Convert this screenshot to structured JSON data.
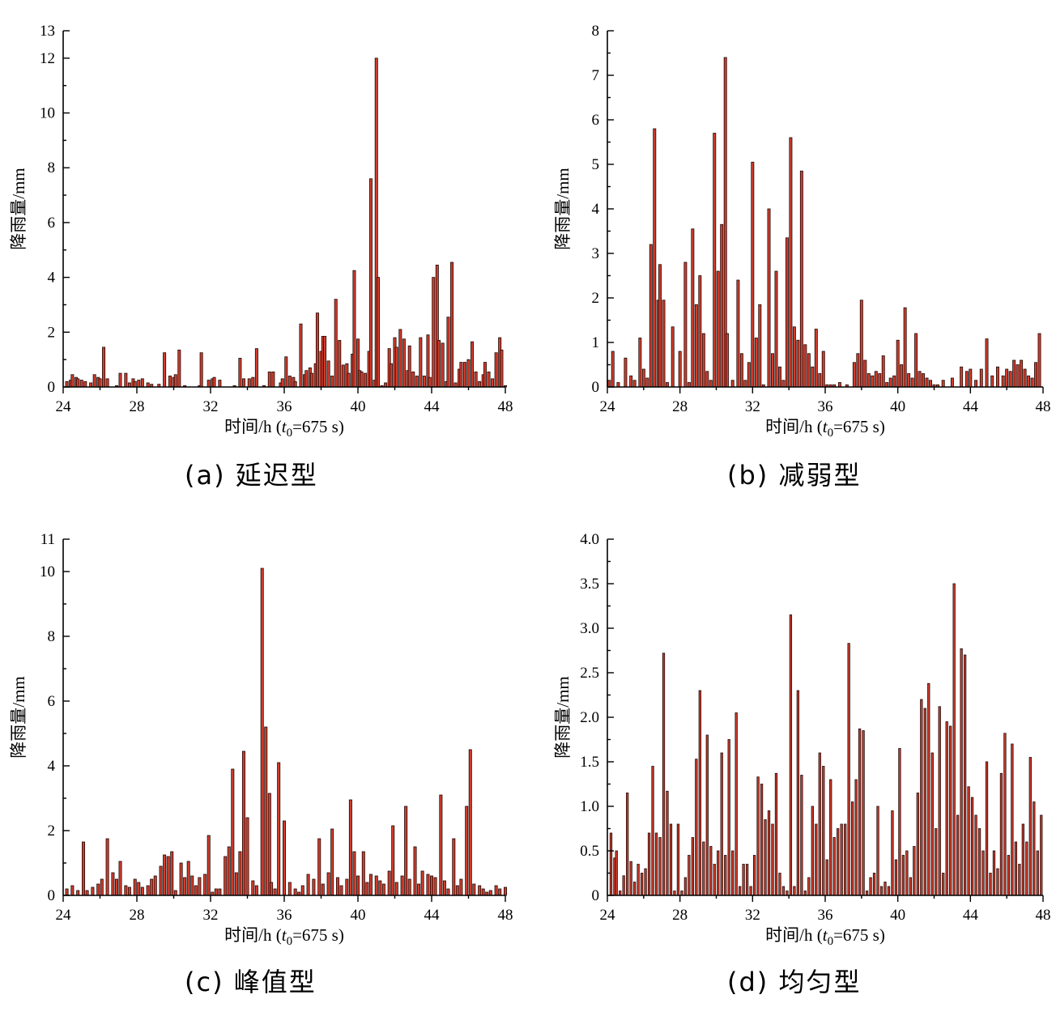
{
  "figure": {
    "xlabel": "时间/h (t0=675 s)",
    "xlabel_parts": {
      "prefix": "时间/h (",
      "var": "t",
      "sub": "0",
      "suffix": "=675 s)"
    },
    "ylabel": "降雨量/mm"
  },
  "colors": {
    "bar_fill": "#d23c2c",
    "bar_stroke": "#1a0a08",
    "axis": "#000000"
  },
  "chart_data": [
    {
      "type": "bar",
      "caption": "(a) 延迟型",
      "xlim": [
        24,
        48
      ],
      "ylim": [
        0,
        13
      ],
      "x_ticks": [
        24,
        28,
        32,
        36,
        40,
        44,
        48
      ],
      "y_ticks": [
        0,
        2,
        4,
        6,
        8,
        10,
        12,
        13
      ],
      "bar_width_h": 0.14,
      "x": [
        24.2,
        24.4,
        24.5,
        24.7,
        24.8,
        25.0,
        25.2,
        25.5,
        25.7,
        25.9,
        26.0,
        26.2,
        26.4,
        26.9,
        27.1,
        27.4,
        27.6,
        27.8,
        27.9,
        28.1,
        28.3,
        28.6,
        28.8,
        29.2,
        29.5,
        29.8,
        30.0,
        30.1,
        30.3,
        30.6,
        31.4,
        31.5,
        31.9,
        32.1,
        32.2,
        32.5,
        33.3,
        33.6,
        33.8,
        34.1,
        34.3,
        34.5,
        34.9,
        35.2,
        35.4,
        35.8,
        35.9,
        36.1,
        36.3,
        36.5,
        36.6,
        36.9,
        37.1,
        37.2,
        37.4,
        37.5,
        37.7,
        37.8,
        38.0,
        38.1,
        38.2,
        38.4,
        38.6,
        38.8,
        39.0,
        39.2,
        39.4,
        39.5,
        39.7,
        39.8,
        40.0,
        40.1,
        40.2,
        40.4,
        40.6,
        40.7,
        40.9,
        41.0,
        41.1,
        41.3,
        41.5,
        41.7,
        41.8,
        42.0,
        42.1,
        42.3,
        42.5,
        42.7,
        42.8,
        43.0,
        43.2,
        43.4,
        43.6,
        43.8,
        43.9,
        44.1,
        44.3,
        44.4,
        44.6,
        44.8,
        44.9,
        45.1,
        45.3,
        45.5,
        45.6,
        45.8,
        46.0,
        46.2,
        46.4,
        46.6,
        46.8,
        46.9,
        47.1,
        47.3,
        47.5,
        47.7,
        47.8,
        48.0
      ],
      "values": [
        0.2,
        0.25,
        0.45,
        0.35,
        0.3,
        0.25,
        0.2,
        0.15,
        0.45,
        0.35,
        0.3,
        1.45,
        0.3,
        0.05,
        0.5,
        0.5,
        0.15,
        0.3,
        0.2,
        0.25,
        0.3,
        0.15,
        0.1,
        0.1,
        1.25,
        0.4,
        0.35,
        0.45,
        1.35,
        0.05,
        0.05,
        1.25,
        0.25,
        0.3,
        0.35,
        0.25,
        0.05,
        1.05,
        0.3,
        0.3,
        0.35,
        1.4,
        0.05,
        0.55,
        0.55,
        0.15,
        0.3,
        1.1,
        0.4,
        0.35,
        0.2,
        2.3,
        0.45,
        0.6,
        0.7,
        0.5,
        0.85,
        2.7,
        1.3,
        1.85,
        1.85,
        0.95,
        0.4,
        3.2,
        1.7,
        0.8,
        0.85,
        0.5,
        1.2,
        4.25,
        1.75,
        0.6,
        0.55,
        0.5,
        1.3,
        7.6,
        0.25,
        12.0,
        4.0,
        0.05,
        0.15,
        1.4,
        0.85,
        1.8,
        1.45,
        2.1,
        1.75,
        0.6,
        1.5,
        0.55,
        0.4,
        1.8,
        0.4,
        1.9,
        0.35,
        4.0,
        4.45,
        1.7,
        1.6,
        0.2,
        2.55,
        4.55,
        0.15,
        0.65,
        0.9,
        0.9,
        1.0,
        1.65,
        0.55,
        0.2,
        0.45,
        0.9,
        0.55,
        0.3,
        1.25,
        1.8,
        1.35,
        0.05
      ]
    },
    {
      "type": "bar",
      "caption": "(b) 减弱型",
      "xlim": [
        24,
        48
      ],
      "ylim": [
        0,
        8
      ],
      "x_ticks": [
        24,
        28,
        32,
        36,
        40,
        44,
        48
      ],
      "y_ticks": [
        0,
        1,
        2,
        3,
        4,
        5,
        6,
        7,
        8
      ],
      "bar_width_h": 0.14,
      "x": [
        24.1,
        24.3,
        24.6,
        25.0,
        25.3,
        25.5,
        25.8,
        26.0,
        26.2,
        26.4,
        26.6,
        26.8,
        26.9,
        27.1,
        27.3,
        27.6,
        28.0,
        28.3,
        28.5,
        28.7,
        28.9,
        29.1,
        29.3,
        29.5,
        29.7,
        29.9,
        30.1,
        30.3,
        30.5,
        30.6,
        30.9,
        31.2,
        31.4,
        31.6,
        31.8,
        32.0,
        32.2,
        32.4,
        32.6,
        32.9,
        33.1,
        33.3,
        33.5,
        33.7,
        33.9,
        34.1,
        34.3,
        34.5,
        34.7,
        34.9,
        35.1,
        35.3,
        35.5,
        35.7,
        35.9,
        36.1,
        36.3,
        36.5,
        36.8,
        37.2,
        37.6,
        37.8,
        38.0,
        38.2,
        38.4,
        38.6,
        38.8,
        39.0,
        39.2,
        39.4,
        39.6,
        39.8,
        40.0,
        40.2,
        40.4,
        40.6,
        40.8,
        41.0,
        41.2,
        41.4,
        41.6,
        41.8,
        42.0,
        42.2,
        42.5,
        43.0,
        43.5,
        43.8,
        44.0,
        44.3,
        44.6,
        44.9,
        45.2,
        45.5,
        45.8,
        46.0,
        46.2,
        46.4,
        46.6,
        46.8,
        47.0,
        47.2,
        47.4,
        47.6,
        47.8
      ],
      "values": [
        0.15,
        0.8,
        0.1,
        0.65,
        0.25,
        0.15,
        1.1,
        0.4,
        0.2,
        3.2,
        5.8,
        1.95,
        2.75,
        1.95,
        0.1,
        1.35,
        0.8,
        2.8,
        0.1,
        3.55,
        1.85,
        2.5,
        1.2,
        0.35,
        0.15,
        5.7,
        2.6,
        3.65,
        7.4,
        1.2,
        0.15,
        2.4,
        0.75,
        0.15,
        0.55,
        5.05,
        1.1,
        1.85,
        0.05,
        4.0,
        0.75,
        2.6,
        0.45,
        0.15,
        3.35,
        5.6,
        1.35,
        1.05,
        4.85,
        0.95,
        0.75,
        0.45,
        1.3,
        0.3,
        0.8,
        0.05,
        0.05,
        0.05,
        0.1,
        0.05,
        0.55,
        0.75,
        1.95,
        0.6,
        0.3,
        0.25,
        0.35,
        0.3,
        0.7,
        0.1,
        0.2,
        0.25,
        1.05,
        0.5,
        1.78,
        0.3,
        0.2,
        1.2,
        0.35,
        0.3,
        0.2,
        0.15,
        0.05,
        0.05,
        0.15,
        0.2,
        0.45,
        0.35,
        0.4,
        0.15,
        0.4,
        1.08,
        0.25,
        0.45,
        0.25,
        0.4,
        0.35,
        0.6,
        0.5,
        0.6,
        0.4,
        0.25,
        0.2,
        0.55,
        1.2
      ]
    },
    {
      "type": "bar",
      "caption": "(c) 峰值型",
      "xlim": [
        24,
        48
      ],
      "ylim": [
        0,
        11
      ],
      "x_ticks": [
        24,
        28,
        32,
        36,
        40,
        44,
        48
      ],
      "y_ticks": [
        0,
        2,
        4,
        6,
        8,
        10,
        11
      ],
      "bar_width_h": 0.14,
      "x": [
        24.2,
        24.5,
        24.8,
        25.1,
        25.3,
        25.6,
        25.9,
        26.1,
        26.4,
        26.7,
        26.9,
        27.1,
        27.4,
        27.6,
        27.9,
        28.1,
        28.3,
        28.6,
        28.8,
        29.0,
        29.3,
        29.5,
        29.7,
        29.9,
        30.1,
        30.4,
        30.6,
        30.8,
        31.0,
        31.2,
        31.4,
        31.7,
        31.9,
        32.1,
        32.3,
        32.5,
        32.8,
        33.0,
        33.2,
        33.4,
        33.6,
        33.8,
        34.0,
        34.3,
        34.5,
        34.8,
        35.0,
        35.2,
        35.3,
        35.5,
        35.7,
        36.0,
        36.3,
        36.6,
        36.8,
        37.0,
        37.3,
        37.6,
        37.9,
        38.1,
        38.4,
        38.6,
        38.9,
        39.1,
        39.4,
        39.6,
        39.8,
        40.0,
        40.3,
        40.5,
        40.7,
        41.0,
        41.2,
        41.4,
        41.7,
        41.9,
        42.1,
        42.4,
        42.6,
        42.8,
        43.1,
        43.3,
        43.5,
        43.8,
        44.0,
        44.2,
        44.5,
        44.7,
        44.9,
        45.2,
        45.4,
        45.6,
        45.9,
        46.1,
        46.3,
        46.6,
        46.8,
        47.0,
        47.2,
        47.5,
        47.7,
        48.0
      ],
      "values": [
        0.2,
        0.3,
        0.15,
        1.65,
        0.15,
        0.25,
        0.35,
        0.5,
        1.75,
        0.7,
        0.5,
        1.05,
        0.3,
        0.25,
        0.5,
        0.4,
        0.25,
        0.3,
        0.5,
        0.6,
        0.9,
        1.25,
        1.2,
        1.35,
        0.15,
        1.0,
        0.55,
        1.05,
        0.6,
        0.3,
        0.55,
        0.65,
        1.85,
        0.1,
        0.2,
        0.2,
        1.2,
        1.5,
        3.9,
        0.7,
        1.35,
        4.45,
        2.4,
        0.45,
        0.3,
        10.1,
        5.2,
        3.15,
        0.4,
        0.2,
        4.1,
        2.3,
        0.4,
        0.2,
        0.1,
        0.3,
        0.65,
        0.5,
        1.75,
        0.35,
        0.7,
        2.05,
        0.55,
        0.3,
        0.5,
        2.95,
        1.35,
        0.6,
        1.35,
        0.4,
        0.65,
        0.6,
        0.45,
        0.35,
        0.75,
        2.15,
        0.4,
        0.6,
        2.75,
        0.5,
        1.5,
        0.35,
        0.75,
        0.65,
        0.6,
        0.55,
        3.1,
        0.45,
        0.2,
        1.75,
        0.3,
        0.5,
        2.75,
        4.5,
        0.35,
        0.3,
        0.2,
        0.1,
        0.15,
        0.3,
        0.2,
        0.25
      ]
    },
    {
      "type": "bar",
      "caption": "(d) 均匀型",
      "xlim": [
        24,
        48
      ],
      "ylim": [
        0,
        4
      ],
      "x_ticks": [
        24,
        28,
        32,
        36,
        40,
        44,
        48
      ],
      "y_ticks": [
        0,
        0.5,
        1.0,
        1.5,
        2.0,
        2.5,
        3.0,
        3.5,
        4.0
      ],
      "y_tick_labels": [
        "0",
        "0.5",
        "1.0",
        "1.5",
        "2.0",
        "2.5",
        "3.0",
        "3.5",
        "4.0"
      ],
      "bar_width_h": 0.11,
      "x": [
        24.2,
        24.4,
        24.5,
        24.7,
        24.9,
        25.1,
        25.3,
        25.5,
        25.7,
        25.9,
        26.1,
        26.3,
        26.5,
        26.7,
        26.9,
        27.1,
        27.3,
        27.5,
        27.7,
        27.9,
        28.1,
        28.3,
        28.5,
        28.7,
        28.9,
        29.1,
        29.3,
        29.5,
        29.7,
        29.9,
        30.1,
        30.3,
        30.5,
        30.7,
        30.9,
        31.1,
        31.3,
        31.5,
        31.7,
        31.9,
        32.1,
        32.3,
        32.5,
        32.7,
        32.9,
        33.1,
        33.3,
        33.5,
        33.7,
        33.9,
        34.1,
        34.3,
        34.5,
        34.7,
        34.9,
        35.1,
        35.3,
        35.5,
        35.7,
        35.9,
        36.1,
        36.3,
        36.5,
        36.7,
        36.9,
        37.1,
        37.3,
        37.5,
        37.7,
        37.9,
        38.1,
        38.3,
        38.5,
        38.7,
        38.9,
        39.1,
        39.3,
        39.5,
        39.7,
        39.9,
        40.1,
        40.3,
        40.5,
        40.7,
        40.9,
        41.1,
        41.3,
        41.5,
        41.7,
        41.9,
        42.1,
        42.3,
        42.5,
        42.7,
        42.9,
        43.1,
        43.3,
        43.5,
        43.7,
        43.9,
        44.1,
        44.3,
        44.5,
        44.7,
        44.9,
        45.1,
        45.3,
        45.5,
        45.7,
        45.9,
        46.1,
        46.3,
        46.5,
        46.7,
        46.9,
        47.1,
        47.3,
        47.5,
        47.7,
        47.9
      ],
      "values": [
        0.7,
        0.42,
        0.5,
        0.05,
        0.22,
        1.15,
        0.38,
        0.15,
        0.35,
        0.25,
        0.3,
        0.7,
        1.45,
        0.7,
        0.65,
        2.72,
        1.17,
        0.8,
        0.05,
        0.8,
        0.05,
        0.2,
        0.45,
        0.65,
        1.53,
        2.3,
        0.6,
        1.8,
        0.55,
        0.35,
        0.5,
        1.6,
        0.45,
        1.75,
        0.5,
        2.05,
        0.1,
        0.35,
        0.35,
        0.1,
        0.45,
        1.33,
        1.25,
        0.85,
        0.95,
        0.8,
        1.37,
        0.25,
        0.1,
        0.05,
        3.15,
        0.1,
        2.3,
        1.35,
        0.05,
        0.2,
        1.0,
        0.8,
        1.6,
        1.45,
        0.4,
        1.3,
        0.65,
        0.75,
        0.8,
        0.8,
        2.83,
        1.05,
        1.3,
        1.87,
        1.85,
        0.05,
        0.2,
        0.25,
        1.0,
        0.1,
        0.15,
        0.1,
        0.95,
        0.4,
        1.65,
        0.45,
        0.5,
        0.2,
        0.55,
        1.15,
        2.2,
        2.1,
        2.38,
        1.6,
        0.75,
        2.12,
        0.25,
        1.95,
        1.9,
        3.5,
        0.9,
        2.77,
        2.7,
        1.22,
        1.1,
        0.9,
        0.75,
        0.5,
        1.5,
        0.25,
        0.5,
        0.3,
        1.37,
        1.82,
        0.45,
        1.7,
        0.6,
        0.35,
        0.8,
        0.6,
        1.55,
        1.05,
        0.5,
        0.9
      ]
    }
  ]
}
